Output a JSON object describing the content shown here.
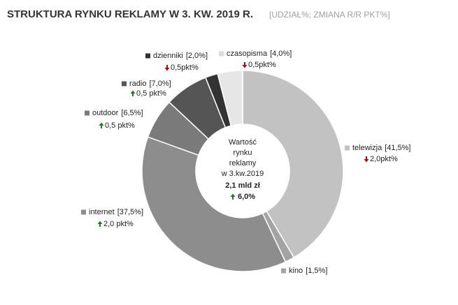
{
  "chart_data": {
    "type": "donut",
    "title": "STRUKTURA RYNKU REKLAMY W 3. KW. 2019 R.",
    "subtitle": "[UDZIAŁ%; ZMIANA R/R PKT%]",
    "categories": [
      "telewizja",
      "kino",
      "internet",
      "outdoor",
      "radio",
      "dzienniki",
      "czasopisma"
    ],
    "values": [
      41.5,
      1.5,
      37.5,
      6.5,
      7.0,
      2.0,
      4.0
    ],
    "value_labels": [
      "[41,5%]",
      "[1,5%]",
      "[37,5%]",
      "[6,5%]",
      "[7,0%]",
      "[2,0%]",
      "[4,0%]"
    ],
    "colors": [
      "#c2c2c2",
      "#a3a3a3",
      "#8d8d8d",
      "#7a7a7a",
      "#555555",
      "#333333",
      "#e6e6e6"
    ],
    "changes": [
      -2.0,
      null,
      2.0,
      0.5,
      0.5,
      -0.5,
      -0.5
    ],
    "change_labels": [
      "2,0pkt%",
      null,
      "2,0 pkt%",
      "0,5 pkt%",
      "0,5 pkt%",
      "0,5pkt%",
      "0,5pkt%"
    ],
    "center_text": [
      "Wartość",
      "rynku",
      "reklamy",
      "w 3.kw.2019"
    ],
    "total": 2.1,
    "total_label": "2,1 mld zł",
    "total_change": 6.0,
    "total_change_label": "6,0%"
  }
}
